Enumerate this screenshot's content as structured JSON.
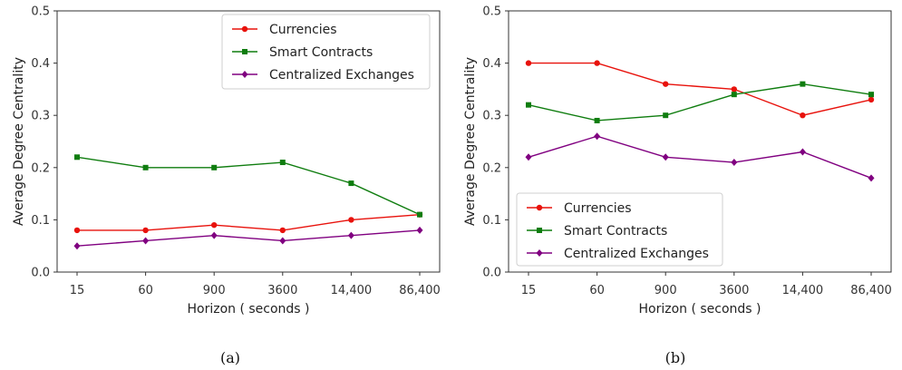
{
  "chart_data": [
    {
      "type": "line",
      "panel_label": "(a)",
      "xlabel": "Horizon ( seconds )",
      "ylabel": "Average Degree Centrality",
      "categories": [
        "15",
        "60",
        "900",
        "3600",
        "14,400",
        "86,400"
      ],
      "ylim": [
        0,
        0.5
      ],
      "yticks": [
        "0.0",
        "0.1",
        "0.2",
        "0.3",
        "0.4",
        "0.5"
      ],
      "legend_position": "top-right",
      "grid": false,
      "series": [
        {
          "name": "Currencies",
          "color": "#e8120c",
          "marker": "circle",
          "values": [
            0.08,
            0.08,
            0.09,
            0.08,
            0.1,
            0.11
          ]
        },
        {
          "name": "Smart Contracts",
          "color": "#0f7d0f",
          "marker": "square",
          "values": [
            0.22,
            0.2,
            0.2,
            0.21,
            0.17,
            0.11
          ]
        },
        {
          "name": "Centralized Exchanges",
          "color": "#800080",
          "marker": "diamond",
          "values": [
            0.05,
            0.06,
            0.07,
            0.06,
            0.07,
            0.08
          ]
        }
      ]
    },
    {
      "type": "line",
      "panel_label": "(b)",
      "xlabel": "Horizon ( seconds )",
      "ylabel": "Average Degree Centrality",
      "categories": [
        "15",
        "60",
        "900",
        "3600",
        "14,400",
        "86,400"
      ],
      "ylim": [
        0,
        0.5
      ],
      "yticks": [
        "0.0",
        "0.1",
        "0.2",
        "0.3",
        "0.4",
        "0.5"
      ],
      "legend_position": "bottom-left",
      "grid": false,
      "series": [
        {
          "name": "Currencies",
          "color": "#e8120c",
          "marker": "circle",
          "values": [
            0.4,
            0.4,
            0.36,
            0.35,
            0.3,
            0.33
          ]
        },
        {
          "name": "Smart Contracts",
          "color": "#0f7d0f",
          "marker": "square",
          "values": [
            0.32,
            0.29,
            0.3,
            0.34,
            0.36,
            0.34
          ]
        },
        {
          "name": "Centralized Exchanges",
          "color": "#800080",
          "marker": "diamond",
          "values": [
            0.22,
            0.26,
            0.22,
            0.21,
            0.23,
            0.18
          ]
        }
      ]
    }
  ]
}
